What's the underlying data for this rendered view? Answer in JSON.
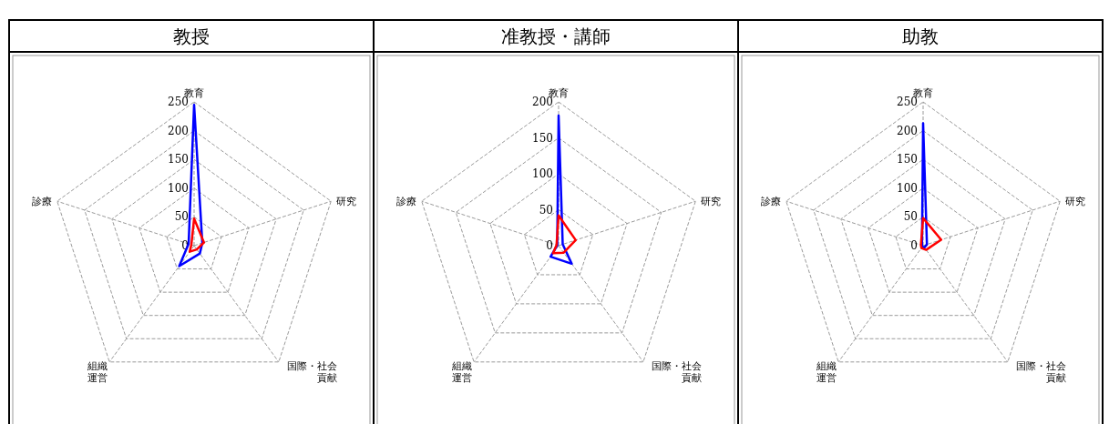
{
  "chart_data": [
    {
      "type": "radar",
      "title": "教授",
      "categories": [
        "教育",
        "研究",
        "国際・社会貢献",
        "組織運営",
        "診療"
      ],
      "ylim": [
        0,
        250
      ],
      "yticks": [
        0,
        50,
        100,
        150,
        200,
        250
      ],
      "grid": true,
      "series": [
        {
          "color": "#0000ff",
          "values": [
            245,
            15,
            17,
            44,
            10
          ]
        },
        {
          "color": "#ff0000",
          "values": [
            47,
            18,
            8,
            13,
            5
          ]
        }
      ]
    },
    {
      "type": "radar",
      "title": "准教授・講師",
      "categories": [
        "教育",
        "研究",
        "国際・社会貢献",
        "組織運営",
        "診療"
      ],
      "ylim": [
        0,
        200
      ],
      "yticks": [
        0,
        50,
        100,
        150,
        200
      ],
      "grid": true,
      "series": [
        {
          "color": "#0000ff",
          "values": [
            181,
            6,
            31,
            19,
            2
          ]
        },
        {
          "color": "#ff0000",
          "values": [
            42,
            25,
            12,
            13,
            3
          ]
        }
      ]
    },
    {
      "type": "radar",
      "title": "助教",
      "categories": [
        "教育",
        "研究",
        "国際・社会貢献",
        "組織運営",
        "診療"
      ],
      "ylim": [
        0,
        250
      ],
      "yticks": [
        0,
        50,
        100,
        150,
        200,
        250
      ],
      "grid": true,
      "series": [
        {
          "color": "#0000ff",
          "values": [
            213,
            7,
            4,
            2,
            2
          ]
        },
        {
          "color": "#ff0000",
          "values": [
            48,
            33,
            9,
            5,
            4
          ]
        }
      ]
    }
  ]
}
